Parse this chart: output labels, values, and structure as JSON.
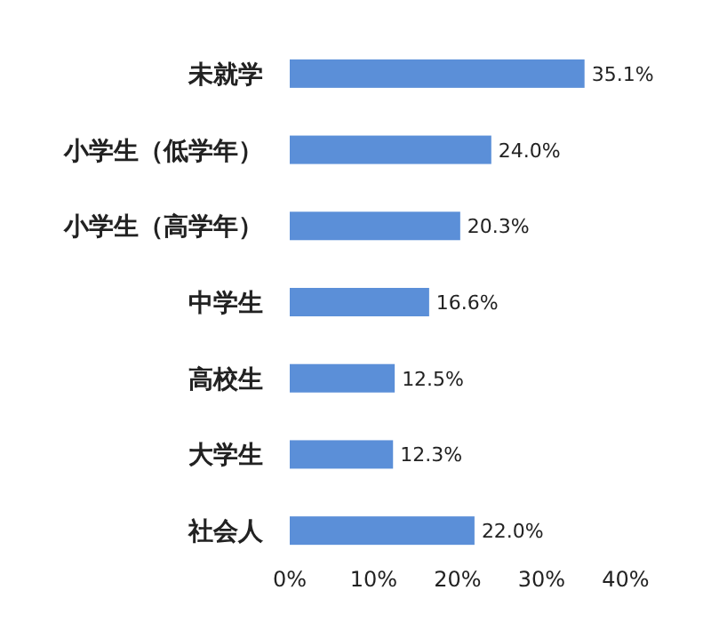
{
  "chart_data": {
    "type": "bar",
    "orientation": "horizontal",
    "categories": [
      "未就学",
      "小学生（低学年）",
      "小学生（高学年）",
      "中学生",
      "高校生",
      "大学生",
      "社会人"
    ],
    "values": [
      35.1,
      24.0,
      20.3,
      16.6,
      12.5,
      12.3,
      22.0
    ],
    "value_labels": [
      "35.1%",
      "24.0%",
      "20.3%",
      "16.6%",
      "12.5%",
      "12.3%",
      "22.0%"
    ],
    "color": "#5b8fd8",
    "xlim": [
      0,
      40
    ],
    "xticks": [
      {
        "value": 0,
        "label": "0%"
      },
      {
        "value": 10,
        "label": "10%"
      },
      {
        "value": 20,
        "label": "20%"
      },
      {
        "value": 30,
        "label": "30%"
      },
      {
        "value": 40,
        "label": "40%"
      }
    ],
    "grid": false
  }
}
